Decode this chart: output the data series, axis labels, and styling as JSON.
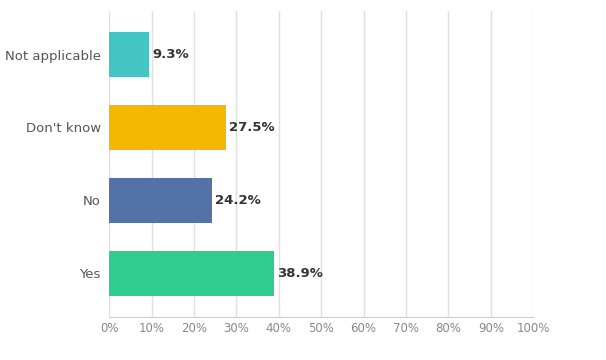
{
  "categories": [
    "Yes",
    "No",
    "Don't know",
    "Not applicable"
  ],
  "values": [
    38.9,
    24.2,
    27.5,
    9.3
  ],
  "labels": [
    "38.9%",
    "24.2%",
    "27.5%",
    "9.3%"
  ],
  "bar_colors": [
    "#2ecc8e",
    "#5272a8",
    "#f5b800",
    "#45c4c4"
  ],
  "background_color": "#ffffff",
  "plot_area_color": "#ffffff",
  "xlim": [
    0,
    100
  ],
  "grid_color": "#e0e0e0",
  "label_fontsize": 9.5,
  "tick_fontsize": 8.5,
  "category_fontsize": 9.5,
  "bar_height": 0.62,
  "label_color": "#333333",
  "tick_color": "#888888",
  "category_color": "#555555"
}
